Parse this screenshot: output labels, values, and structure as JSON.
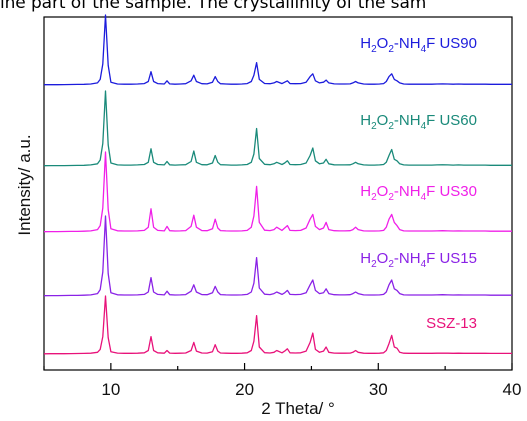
{
  "caption_fragment": "ine part of the sample. The crystallinity of the sam",
  "chart_data": {
    "type": "line",
    "title": "",
    "xlabel": "2 Theta/ °",
    "ylabel": "Intensity/ a.u.",
    "xlim": [
      5,
      40
    ],
    "xticks": [
      10,
      20,
      30,
      40
    ],
    "y_ticks_shown": false,
    "grid": false,
    "legend": "inline labels right of each trace",
    "x": [
      5,
      5.5,
      6,
      6.5,
      7,
      7.5,
      8,
      8.5,
      9,
      9.2,
      9.4,
      9.6,
      9.8,
      10,
      10.5,
      11,
      11.5,
      12,
      12.5,
      12.8,
      13.0,
      13.2,
      13.5,
      14,
      14.2,
      14.4,
      14.8,
      15.2,
      15.6,
      16.0,
      16.2,
      16.4,
      16.8,
      17.2,
      17.6,
      17.8,
      18.0,
      18.2,
      18.6,
      19.0,
      19.4,
      19.8,
      20.2,
      20.5,
      20.7,
      20.9,
      21.1,
      21.5,
      21.9,
      22.2,
      22.4,
      22.8,
      23.0,
      23.2,
      23.4,
      23.8,
      24.2,
      24.6,
      24.9,
      25.1,
      25.3,
      25.6,
      25.9,
      26.1,
      26.3,
      26.7,
      27.1,
      27.5,
      27.9,
      28.1,
      28.3,
      28.5,
      28.9,
      29.3,
      29.7,
      30.1,
      30.4,
      30.6,
      30.8,
      31.0,
      31.2,
      31.4,
      31.6,
      31.9,
      32.3,
      32.8,
      33.2,
      33.6,
      34.0,
      34.4,
      34.8,
      35.2,
      35.6,
      36.0,
      36.4,
      36.8,
      37.2,
      37.6,
      38.0,
      38.4,
      38.8,
      39.2,
      39.6,
      40
    ],
    "series": [
      {
        "name": "H₂O₂-NH₄F US90",
        "label_main": "H",
        "label_parts": [
          "H",
          "2",
          "O",
          "2",
          "-NH",
          "4",
          "F US90"
        ],
        "color": "#1c1cdc",
        "values": [
          0.004,
          0.005,
          0.005,
          0.006,
          0.007,
          0.008,
          0.01,
          0.014,
          0.03,
          0.08,
          0.3,
          1.0,
          0.28,
          0.04,
          0.015,
          0.012,
          0.012,
          0.014,
          0.02,
          0.05,
          0.19,
          0.05,
          0.02,
          0.014,
          0.06,
          0.016,
          0.012,
          0.014,
          0.018,
          0.06,
          0.14,
          0.05,
          0.018,
          0.016,
          0.04,
          0.12,
          0.05,
          0.018,
          0.014,
          0.012,
          0.012,
          0.014,
          0.02,
          0.05,
          0.14,
          0.32,
          0.08,
          0.022,
          0.018,
          0.03,
          0.05,
          0.02,
          0.04,
          0.06,
          0.02,
          0.018,
          0.02,
          0.04,
          0.12,
          0.16,
          0.06,
          0.03,
          0.04,
          0.07,
          0.03,
          0.016,
          0.014,
          0.014,
          0.016,
          0.03,
          0.05,
          0.03,
          0.014,
          0.012,
          0.012,
          0.014,
          0.02,
          0.05,
          0.12,
          0.16,
          0.08,
          0.06,
          0.03,
          0.014,
          0.012,
          0.012,
          0.012,
          0.012,
          0.012,
          0.014,
          0.016,
          0.014,
          0.012,
          0.014,
          0.012,
          0.012,
          0.012,
          0.012,
          0.012,
          0.01,
          0.01,
          0.01,
          0.01,
          0.01
        ]
      },
      {
        "name": "H₂O₂-NH₄F US60",
        "label_parts": [
          "H",
          "2",
          "O",
          "2",
          "-NH",
          "4",
          "F US60"
        ],
        "color": "#1a8a7a",
        "values": [
          0.004,
          0.005,
          0.005,
          0.006,
          0.007,
          0.008,
          0.01,
          0.014,
          0.03,
          0.08,
          0.3,
          1.0,
          0.28,
          0.04,
          0.015,
          0.012,
          0.012,
          0.014,
          0.02,
          0.05,
          0.23,
          0.05,
          0.02,
          0.014,
          0.06,
          0.016,
          0.012,
          0.014,
          0.018,
          0.06,
          0.2,
          0.05,
          0.018,
          0.016,
          0.04,
          0.14,
          0.05,
          0.018,
          0.014,
          0.012,
          0.012,
          0.014,
          0.02,
          0.05,
          0.16,
          0.5,
          0.1,
          0.022,
          0.018,
          0.03,
          0.05,
          0.02,
          0.04,
          0.07,
          0.02,
          0.018,
          0.02,
          0.04,
          0.14,
          0.24,
          0.07,
          0.03,
          0.04,
          0.09,
          0.03,
          0.016,
          0.014,
          0.014,
          0.016,
          0.03,
          0.05,
          0.03,
          0.014,
          0.012,
          0.012,
          0.014,
          0.02,
          0.05,
          0.14,
          0.22,
          0.09,
          0.07,
          0.03,
          0.014,
          0.012,
          0.012,
          0.012,
          0.012,
          0.012,
          0.014,
          0.016,
          0.014,
          0.012,
          0.014,
          0.012,
          0.012,
          0.012,
          0.012,
          0.012,
          0.01,
          0.01,
          0.01,
          0.01,
          0.01
        ]
      },
      {
        "name": "H₂O₂-NH₄F US30",
        "label_parts": [
          "H",
          "2",
          "O",
          "2",
          "-NH",
          "4",
          "F US30"
        ],
        "color": "#f020e8",
        "values": [
          0.004,
          0.005,
          0.005,
          0.006,
          0.007,
          0.008,
          0.01,
          0.014,
          0.03,
          0.08,
          0.3,
          1.0,
          0.28,
          0.04,
          0.015,
          0.012,
          0.012,
          0.014,
          0.02,
          0.06,
          0.29,
          0.06,
          0.02,
          0.014,
          0.07,
          0.016,
          0.012,
          0.014,
          0.018,
          0.07,
          0.21,
          0.06,
          0.018,
          0.016,
          0.04,
          0.16,
          0.05,
          0.018,
          0.014,
          0.012,
          0.012,
          0.014,
          0.02,
          0.06,
          0.2,
          0.57,
          0.12,
          0.022,
          0.018,
          0.03,
          0.06,
          0.02,
          0.05,
          0.08,
          0.02,
          0.018,
          0.02,
          0.05,
          0.16,
          0.22,
          0.07,
          0.03,
          0.05,
          0.12,
          0.03,
          0.016,
          0.014,
          0.014,
          0.016,
          0.03,
          0.06,
          0.03,
          0.014,
          0.012,
          0.012,
          0.014,
          0.02,
          0.06,
          0.16,
          0.22,
          0.12,
          0.08,
          0.03,
          0.014,
          0.012,
          0.012,
          0.012,
          0.012,
          0.012,
          0.014,
          0.016,
          0.014,
          0.012,
          0.014,
          0.012,
          0.012,
          0.012,
          0.012,
          0.012,
          0.01,
          0.01,
          0.01,
          0.01,
          0.01
        ]
      },
      {
        "name": "H₂O₂-NH₄F US15",
        "label_parts": [
          "H",
          "2",
          "O",
          "2",
          "-NH",
          "4",
          "F US15"
        ],
        "color": "#8a22e6",
        "values": [
          0.004,
          0.005,
          0.005,
          0.006,
          0.007,
          0.008,
          0.01,
          0.014,
          0.03,
          0.08,
          0.3,
          1.0,
          0.28,
          0.04,
          0.015,
          0.012,
          0.012,
          0.014,
          0.02,
          0.05,
          0.23,
          0.05,
          0.02,
          0.014,
          0.06,
          0.016,
          0.012,
          0.014,
          0.018,
          0.06,
          0.14,
          0.05,
          0.018,
          0.016,
          0.04,
          0.12,
          0.05,
          0.018,
          0.014,
          0.012,
          0.012,
          0.014,
          0.02,
          0.05,
          0.16,
          0.48,
          0.1,
          0.022,
          0.018,
          0.03,
          0.05,
          0.02,
          0.04,
          0.07,
          0.02,
          0.018,
          0.02,
          0.04,
          0.14,
          0.2,
          0.07,
          0.03,
          0.04,
          0.09,
          0.03,
          0.016,
          0.014,
          0.014,
          0.016,
          0.03,
          0.05,
          0.03,
          0.014,
          0.012,
          0.012,
          0.014,
          0.02,
          0.05,
          0.14,
          0.2,
          0.09,
          0.07,
          0.03,
          0.014,
          0.012,
          0.012,
          0.012,
          0.012,
          0.012,
          0.014,
          0.016,
          0.014,
          0.012,
          0.014,
          0.012,
          0.012,
          0.012,
          0.012,
          0.012,
          0.01,
          0.01,
          0.01,
          0.01,
          0.01
        ]
      },
      {
        "name": "SSZ-13",
        "label_parts": [
          "SSZ-13"
        ],
        "color": "#e8127a",
        "values": [
          0.004,
          0.005,
          0.005,
          0.006,
          0.007,
          0.008,
          0.01,
          0.014,
          0.03,
          0.08,
          0.3,
          1.0,
          0.28,
          0.04,
          0.015,
          0.012,
          0.012,
          0.014,
          0.02,
          0.06,
          0.3,
          0.06,
          0.02,
          0.014,
          0.06,
          0.016,
          0.012,
          0.014,
          0.018,
          0.06,
          0.2,
          0.05,
          0.018,
          0.016,
          0.04,
          0.16,
          0.05,
          0.018,
          0.014,
          0.012,
          0.012,
          0.014,
          0.02,
          0.06,
          0.22,
          0.66,
          0.12,
          0.022,
          0.018,
          0.03,
          0.06,
          0.02,
          0.05,
          0.09,
          0.02,
          0.018,
          0.02,
          0.05,
          0.2,
          0.36,
          0.08,
          0.03,
          0.05,
          0.12,
          0.03,
          0.016,
          0.014,
          0.014,
          0.016,
          0.03,
          0.06,
          0.03,
          0.014,
          0.012,
          0.012,
          0.014,
          0.02,
          0.06,
          0.18,
          0.32,
          0.12,
          0.1,
          0.03,
          0.014,
          0.012,
          0.012,
          0.012,
          0.012,
          0.012,
          0.014,
          0.016,
          0.014,
          0.012,
          0.014,
          0.012,
          0.012,
          0.012,
          0.012,
          0.012,
          0.01,
          0.01,
          0.01,
          0.01,
          0.01
        ]
      }
    ]
  }
}
